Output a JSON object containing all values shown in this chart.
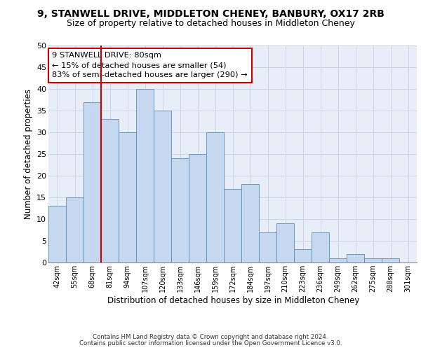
{
  "title_line1": "9, STANWELL DRIVE, MIDDLETON CHENEY, BANBURY, OX17 2RB",
  "title_line2": "Size of property relative to detached houses in Middleton Cheney",
  "xlabel": "Distribution of detached houses by size in Middleton Cheney",
  "ylabel": "Number of detached properties",
  "footnote1": "Contains HM Land Registry data © Crown copyright and database right 2024.",
  "footnote2": "Contains public sector information licensed under the Open Government Licence v3.0.",
  "categories": [
    "42sqm",
    "55sqm",
    "68sqm",
    "81sqm",
    "94sqm",
    "107sqm",
    "120sqm",
    "133sqm",
    "146sqm",
    "159sqm",
    "172sqm",
    "184sqm",
    "197sqm",
    "210sqm",
    "223sqm",
    "236sqm",
    "249sqm",
    "262sqm",
    "275sqm",
    "288sqm",
    "301sqm"
  ],
  "values": [
    13,
    15,
    37,
    33,
    30,
    40,
    35,
    24,
    25,
    30,
    17,
    18,
    7,
    9,
    3,
    7,
    1,
    2,
    1,
    1,
    0
  ],
  "bar_color": "#c5d8f0",
  "bar_edge_color": "#5b8db8",
  "annotation_text": "9 STANWELL DRIVE: 80sqm\n← 15% of detached houses are smaller (54)\n83% of semi-detached houses are larger (290) →",
  "annotation_box_color": "#ffffff",
  "annotation_box_edge_color": "#cc0000",
  "vline_color": "#cc0000",
  "ylim": [
    0,
    50
  ],
  "yticks": [
    0,
    5,
    10,
    15,
    20,
    25,
    30,
    35,
    40,
    45,
    50
  ],
  "grid_color": "#c8d4e8",
  "bg_color": "#e8eef8",
  "title_fontsize": 10,
  "subtitle_fontsize": 9
}
